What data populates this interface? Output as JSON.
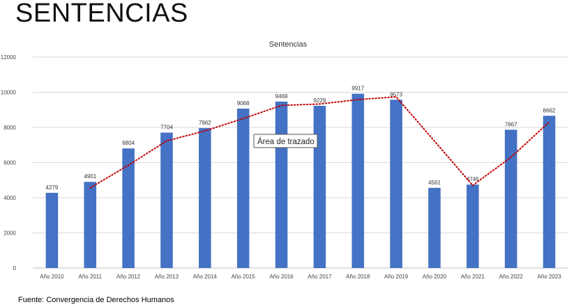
{
  "slide": {
    "title": "SENTENCIAS",
    "source": "Fuente: Convergencia de Derechos Humanos"
  },
  "chart_data": {
    "type": "bar",
    "title": "Sentencias",
    "xlabel": "",
    "ylabel": "",
    "ylim": [
      0,
      12000
    ],
    "yticks": [
      0,
      2000,
      4000,
      6000,
      8000,
      10000,
      12000
    ],
    "grid": true,
    "legend": "none",
    "bar_color": "#4472C4",
    "trendline_color": "#C00000",
    "trendline_style": "dotted",
    "categories": [
      "Año 2010",
      "Año 2011",
      "Año 2012",
      "Año 2013",
      "Año 2014",
      "Año 2015",
      "Año 2016",
      "Año 2017",
      "Año 2018",
      "Año 2019",
      "Año 2020",
      "Año 2021",
      "Año 2022",
      "Año 2023"
    ],
    "values": [
      4279,
      4901,
      6804,
      7704,
      7962,
      9068,
      9469,
      9229,
      9917,
      9573,
      4561,
      4746,
      7867,
      8662
    ],
    "trendline_values": [
      null,
      4560,
      5850,
      7230,
      7800,
      8500,
      9250,
      9330,
      9580,
      9740,
      null,
      4700,
      6300,
      8300
    ],
    "annotation": "Área de trazado"
  }
}
